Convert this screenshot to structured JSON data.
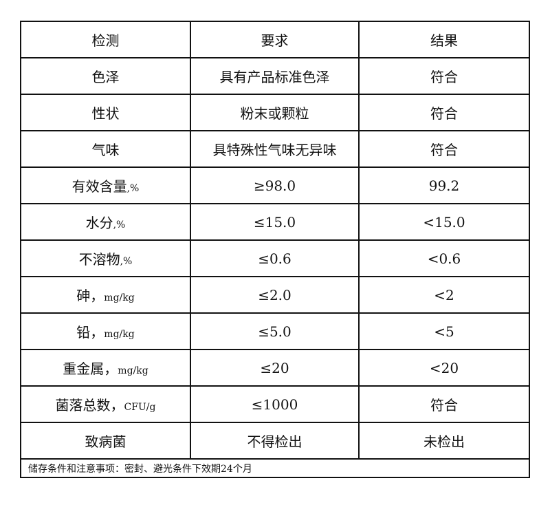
{
  "header": [
    "检测",
    "要求",
    "结果"
  ],
  "rows": [
    {
      "item": "色泽",
      "unit": "",
      "requirement": "具有产品标准色泽",
      "result": "符合"
    },
    {
      "item": "性状",
      "unit": "",
      "requirement": "粉末或颗粒",
      "result": "符合"
    },
    {
      "item": "气味",
      "unit": "",
      "requirement": "具特殊性气味无异味",
      "result": "符合"
    },
    {
      "item": "有效含量",
      "unit": ",%",
      "requirement": "≥98.0",
      "result": "99.2"
    },
    {
      "item": "水分",
      "unit": ",%",
      "requirement": "≤15.0",
      "result": "<15.0"
    },
    {
      "item": "不溶物",
      "unit": ",%",
      "requirement": "≤0.6",
      "result": "<0.6"
    },
    {
      "item": "砷，",
      "unit": "mg/kg",
      "requirement": "≤2.0",
      "result": "<2"
    },
    {
      "item": "铅，",
      "unit": "mg/kg",
      "requirement": "≤5.0",
      "result": "<5"
    },
    {
      "item": "重金属，",
      "unit": "mg/kg",
      "requirement": "≤20",
      "result": "<20"
    },
    {
      "item": "菌落总数，",
      "unit": "CFU/g",
      "requirement": "≤1000",
      "result": "符合"
    },
    {
      "item": "致病菌",
      "unit": "",
      "requirement": "不得检出",
      "result": "未检出"
    }
  ],
  "note": "储存条件和注意事项：密封、避光条件下效期24个月"
}
